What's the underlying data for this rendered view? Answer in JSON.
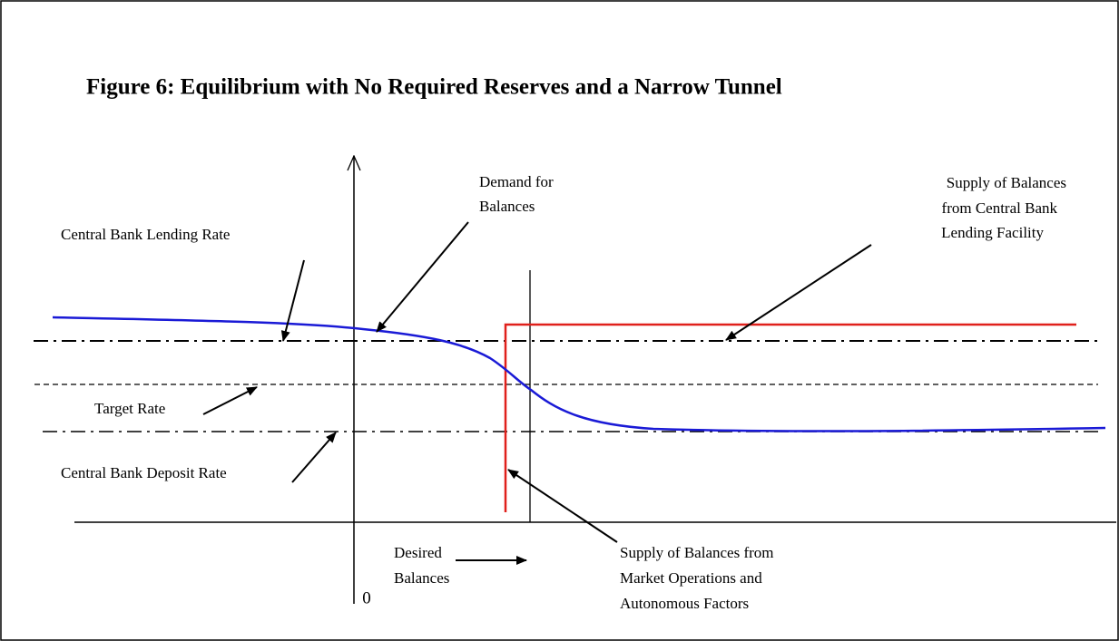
{
  "title": "Figure 6:  Equilibrium with No Required Reserves and a Narrow Tunnel",
  "labels": {
    "lending_rate": "Central Bank Lending Rate",
    "demand": [
      "Demand for",
      "Balances"
    ],
    "supply_lending": [
      "Supply of Balances",
      "from Central Bank",
      "Lending Facility"
    ],
    "target_rate": "Target Rate",
    "deposit_rate": "Central Bank Deposit Rate",
    "origin": "0",
    "desired": [
      "Desired",
      "Balances"
    ],
    "supply_market": [
      "Supply of Balances from",
      "Market Operations and",
      "Autonomous Factors"
    ]
  }
}
